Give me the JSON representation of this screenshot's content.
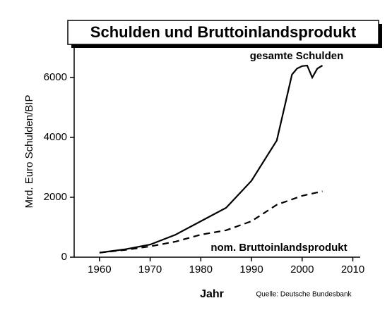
{
  "chart_data": {
    "type": "line",
    "title": "Schulden und Bruttoinlandsprodukt",
    "x_label": "Jahr",
    "y_label": "Mrd. Euro Schulden/BIP",
    "source": "Quelle: Deutsche Bundesbank",
    "xlim": [
      1955,
      2010
    ],
    "xticks": [
      1960,
      1970,
      1980,
      1990,
      2000,
      2010
    ],
    "ylim": [
      0,
      7000
    ],
    "yticks": [
      0,
      2000,
      4000,
      6000
    ],
    "series": [
      {
        "name": "gesamte Schulden",
        "color": "#000000",
        "line_style": "solid",
        "x": [
          1960,
          1965,
          1970,
          1975,
          1980,
          1985,
          1990,
          1995,
          1998,
          1999,
          2000,
          2001,
          2002,
          2003,
          2004
        ],
        "values": [
          150,
          260,
          420,
          750,
          1200,
          1650,
          2550,
          3900,
          6100,
          6300,
          6380,
          6400,
          6000,
          6300,
          6400
        ]
      },
      {
        "name": "nom. Bruttoinlandsprodukt",
        "color": "#000000",
        "line_style": "dashed",
        "x": [
          1960,
          1965,
          1970,
          1975,
          1980,
          1985,
          1990,
          1995,
          2000,
          2004
        ],
        "values": [
          150,
          240,
          360,
          520,
          750,
          900,
          1200,
          1750,
          2050,
          2200
        ]
      }
    ]
  }
}
